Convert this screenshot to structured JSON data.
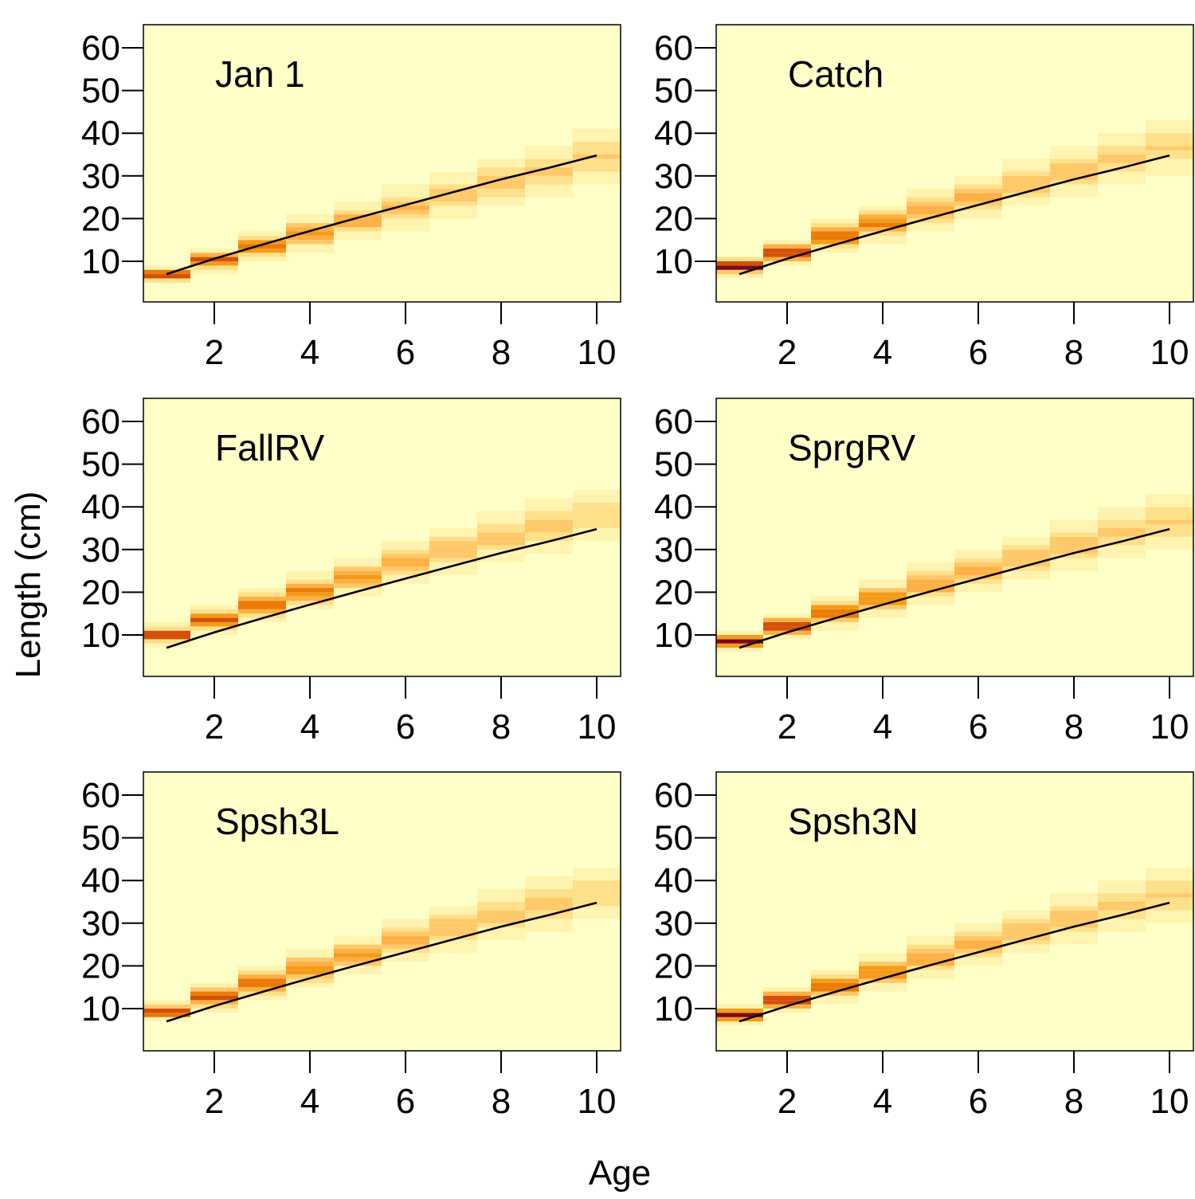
{
  "figure": {
    "xlabel": "Age",
    "ylabel": "Length (cm)"
  },
  "colors": {
    "background": "#FFFFC8",
    "plot_border": "#000000",
    "growth_curve": "#000000",
    "heat_scale": [
      "#FFFFC8",
      "#FFF3B0",
      "#FFE08A",
      "#FFC96A",
      "#FFB045",
      "#F59B1A",
      "#EB7A06",
      "#D45008",
      "#B3200E",
      "#7A0A1E"
    ]
  },
  "chart_data": [
    {
      "type": "heatmap",
      "title": "Jan 1",
      "xlabel": "Age",
      "ylabel": "Length (cm)",
      "xlim": [
        0.5,
        10.5
      ],
      "ylim": [
        0,
        65
      ],
      "xticks": [
        2,
        4,
        6,
        8,
        10
      ],
      "yticks": [
        10,
        20,
        30,
        40,
        50,
        60
      ],
      "grid": false,
      "ages": [
        1,
        2,
        3,
        4,
        5,
        6,
        7,
        8,
        9,
        10
      ],
      "mean_length": [
        6.9,
        10.3,
        13.5,
        16.5,
        19.5,
        22.5,
        25.5,
        28.5,
        31.3,
        34.5
      ],
      "sd_length": [
        0.8,
        1.2,
        1.5,
        1.8,
        2.0,
        2.2,
        2.4,
        2.6,
        2.8,
        3.0
      ],
      "peak_intensity": [
        0.9,
        0.75,
        0.65,
        0.55,
        0.45,
        0.4,
        0.35,
        0.33,
        0.3,
        0.28
      ],
      "growth_curve": {
        "age": [
          1,
          2,
          3,
          4,
          5,
          6,
          7,
          8,
          9,
          10
        ],
        "length": [
          7.0,
          10.6,
          13.9,
          17.1,
          20.2,
          23.2,
          26.2,
          29.2,
          31.9,
          34.8
        ]
      }
    },
    {
      "type": "heatmap",
      "title": "Catch",
      "xlabel": "Age",
      "ylabel": "Length (cm)",
      "xlim": [
        0.5,
        10.5
      ],
      "ylim": [
        0,
        65
      ],
      "xticks": [
        2,
        4,
        6,
        8,
        10
      ],
      "yticks": [
        10,
        20,
        30,
        40,
        50,
        60
      ],
      "grid": false,
      "ages": [
        1,
        2,
        3,
        4,
        5,
        6,
        7,
        8,
        9,
        10
      ],
      "mean_length": [
        8.8,
        12.0,
        15.8,
        18.8,
        22.0,
        25.2,
        28.3,
        31.0,
        33.8,
        36.8
      ],
      "sd_length": [
        0.9,
        1.3,
        1.6,
        1.8,
        2.0,
        2.2,
        2.4,
        2.6,
        2.8,
        3.0
      ],
      "peak_intensity": [
        1.0,
        0.85,
        0.72,
        0.62,
        0.5,
        0.42,
        0.38,
        0.34,
        0.3,
        0.28
      ],
      "growth_curve": {
        "age": [
          1,
          2,
          3,
          4,
          5,
          6,
          7,
          8,
          9,
          10
        ],
        "length": [
          7.0,
          10.6,
          13.9,
          17.1,
          20.2,
          23.2,
          26.2,
          29.2,
          31.9,
          34.8
        ]
      }
    },
    {
      "type": "heatmap",
      "title": "FallRV",
      "xlabel": "Age",
      "ylabel": "Length (cm)",
      "xlim": [
        0.5,
        10.5
      ],
      "ylim": [
        0,
        65
      ],
      "xticks": [
        2,
        4,
        6,
        8,
        10
      ],
      "yticks": [
        10,
        20,
        30,
        40,
        50,
        60
      ],
      "grid": false,
      "ages": [
        1,
        2,
        3,
        4,
        5,
        6,
        7,
        8,
        9,
        10
      ],
      "mean_length": [
        10.0,
        13.5,
        17.0,
        20.2,
        23.5,
        26.8,
        29.8,
        32.8,
        35.5,
        38.0
      ],
      "sd_length": [
        1.0,
        1.3,
        1.6,
        1.8,
        2.0,
        2.2,
        2.4,
        2.6,
        2.8,
        3.0
      ],
      "peak_intensity": [
        0.82,
        0.8,
        0.7,
        0.62,
        0.5,
        0.42,
        0.38,
        0.34,
        0.3,
        0.28
      ],
      "growth_curve": {
        "age": [
          1,
          2,
          3,
          4,
          5,
          6,
          7,
          8,
          9,
          10
        ],
        "length": [
          7.0,
          10.6,
          13.9,
          17.1,
          20.2,
          23.2,
          26.2,
          29.2,
          31.9,
          34.8
        ]
      }
    },
    {
      "type": "heatmap",
      "title": "SprgRV",
      "xlabel": "Age",
      "ylabel": "Length (cm)",
      "xlim": [
        0.5,
        10.5
      ],
      "ylim": [
        0,
        65
      ],
      "xticks": [
        2,
        4,
        6,
        8,
        10
      ],
      "yticks": [
        10,
        20,
        30,
        40,
        50,
        60
      ],
      "grid": false,
      "ages": [
        1,
        2,
        3,
        4,
        5,
        6,
        7,
        8,
        9,
        10
      ],
      "mean_length": [
        8.5,
        12.0,
        15.3,
        18.5,
        21.8,
        25.0,
        28.0,
        31.0,
        33.8,
        36.5
      ],
      "sd_length": [
        0.9,
        1.3,
        1.6,
        1.8,
        2.0,
        2.2,
        2.4,
        2.6,
        2.8,
        3.0
      ],
      "peak_intensity": [
        1.0,
        0.82,
        0.7,
        0.6,
        0.5,
        0.42,
        0.38,
        0.34,
        0.3,
        0.28
      ],
      "growth_curve": {
        "age": [
          1,
          2,
          3,
          4,
          5,
          6,
          7,
          8,
          9,
          10
        ],
        "length": [
          7.0,
          10.6,
          13.9,
          17.1,
          20.2,
          23.2,
          26.2,
          29.2,
          31.9,
          34.8
        ]
      }
    },
    {
      "type": "heatmap",
      "title": "Spsh3L",
      "xlabel": "Age",
      "ylabel": "Length (cm)",
      "xlim": [
        0.5,
        10.5
      ],
      "ylim": [
        0,
        65
      ],
      "xticks": [
        2,
        4,
        6,
        8,
        10
      ],
      "yticks": [
        10,
        20,
        30,
        40,
        50,
        60
      ],
      "grid": false,
      "ages": [
        1,
        2,
        3,
        4,
        5,
        6,
        7,
        8,
        9,
        10
      ],
      "mean_length": [
        9.2,
        12.8,
        16.0,
        19.3,
        22.5,
        25.8,
        28.8,
        31.8,
        34.5,
        37.0
      ],
      "sd_length": [
        0.9,
        1.3,
        1.6,
        1.8,
        2.0,
        2.2,
        2.4,
        2.6,
        2.8,
        3.0
      ],
      "peak_intensity": [
        0.88,
        0.8,
        0.68,
        0.6,
        0.5,
        0.42,
        0.38,
        0.34,
        0.3,
        0.28
      ],
      "growth_curve": {
        "age": [
          1,
          2,
          3,
          4,
          5,
          6,
          7,
          8,
          9,
          10
        ],
        "length": [
          7.0,
          10.6,
          13.9,
          17.1,
          20.2,
          23.2,
          26.2,
          29.2,
          31.9,
          34.8
        ]
      }
    },
    {
      "type": "heatmap",
      "title": "Spsh3N",
      "xlabel": "Age",
      "ylabel": "Length (cm)",
      "xlim": [
        0.5,
        10.5
      ],
      "ylim": [
        0,
        65
      ],
      "xticks": [
        2,
        4,
        6,
        8,
        10
      ],
      "yticks": [
        10,
        20,
        30,
        40,
        50,
        60
      ],
      "grid": false,
      "ages": [
        1,
        2,
        3,
        4,
        5,
        6,
        7,
        8,
        9,
        10
      ],
      "mean_length": [
        8.5,
        12.0,
        15.3,
        18.5,
        21.8,
        25.0,
        28.0,
        31.0,
        33.8,
        36.5
      ],
      "sd_length": [
        0.9,
        1.3,
        1.6,
        1.8,
        2.0,
        2.2,
        2.4,
        2.6,
        2.8,
        3.0
      ],
      "peak_intensity": [
        1.0,
        0.82,
        0.7,
        0.6,
        0.5,
        0.42,
        0.38,
        0.34,
        0.3,
        0.28
      ],
      "growth_curve": {
        "age": [
          1,
          2,
          3,
          4,
          5,
          6,
          7,
          8,
          9,
          10
        ],
        "length": [
          7.0,
          10.6,
          13.9,
          17.1,
          20.2,
          23.2,
          26.2,
          29.2,
          31.9,
          34.8
        ]
      }
    }
  ]
}
